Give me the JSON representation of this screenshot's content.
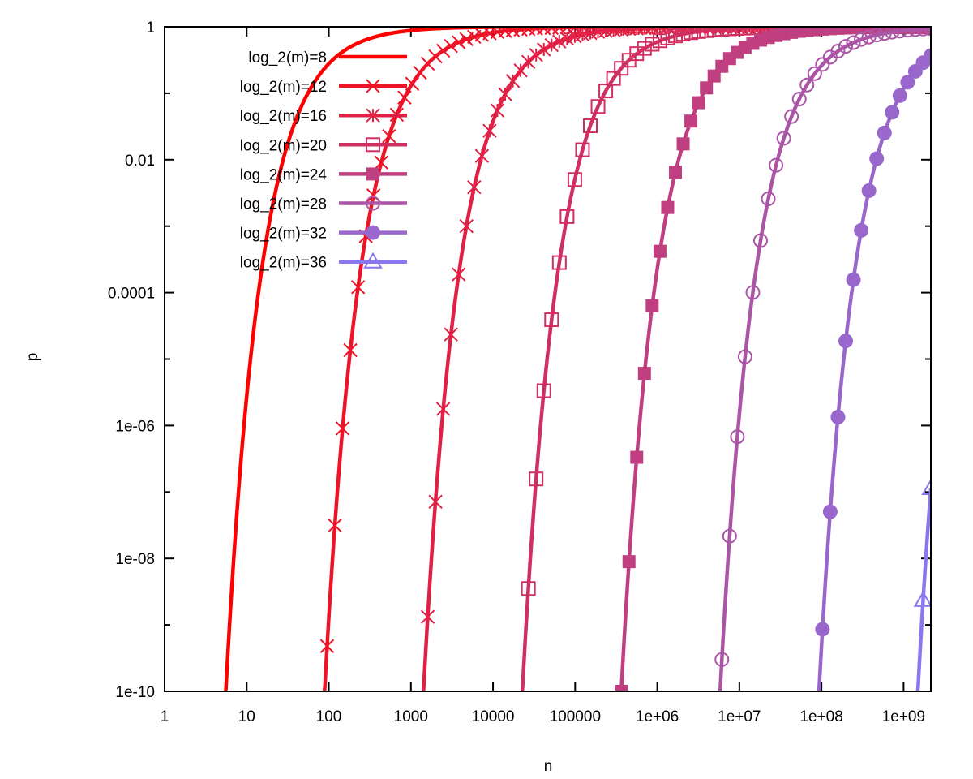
{
  "chart_data": {
    "type": "line",
    "title": "",
    "xlabel": "n",
    "ylabel": "p",
    "xscale": "log",
    "yscale": "log",
    "xlim": [
      1,
      2147483648
    ],
    "ylim": [
      1e-10,
      1
    ],
    "grid": false,
    "legend_placement": "top-left",
    "x_ticks": [
      {
        "value": 1,
        "label": "1"
      },
      {
        "value": 10,
        "label": "10"
      },
      {
        "value": 100,
        "label": "100"
      },
      {
        "value": 1000,
        "label": "1000"
      },
      {
        "value": 10000,
        "label": "10000"
      },
      {
        "value": 100000,
        "label": "100000"
      },
      {
        "value": 1000000,
        "label": "1e+06"
      },
      {
        "value": 10000000,
        "label": "1e+07"
      },
      {
        "value": 100000000,
        "label": "1e+08"
      },
      {
        "value": 1000000000,
        "label": "1e+09"
      }
    ],
    "y_ticks": [
      {
        "value": 1,
        "label": "1"
      },
      {
        "value": 0.1,
        "label": ""
      },
      {
        "value": 0.01,
        "label": "0.01"
      },
      {
        "value": 0.001,
        "label": ""
      },
      {
        "value": 0.0001,
        "label": "0.0001"
      },
      {
        "value": 1e-05,
        "label": ""
      },
      {
        "value": 1e-06,
        "label": "1e-06"
      },
      {
        "value": 1e-07,
        "label": ""
      },
      {
        "value": 1e-08,
        "label": "1e-08"
      },
      {
        "value": 1e-09,
        "label": ""
      },
      {
        "value": 1e-10,
        "label": "1e-10"
      }
    ],
    "series": [
      {
        "name": "log_2(m)=8",
        "color": "#ff0000",
        "marker": "none",
        "points": [
          [
            5.57,
            1.03e-10
          ],
          [
            12.8,
            4.54e-05
          ],
          [
            25.6,
            0.00674
          ],
          [
            64,
            0.135
          ],
          [
            128,
            0.368
          ],
          [
            640,
            0.819
          ],
          [
            6400,
            0.98
          ]
        ]
      },
      {
        "name": "log_2(m)=12",
        "color": "#ee1428",
        "marker": "cross",
        "points": [
          [
            89,
            1.03e-10
          ],
          [
            205,
            4.54e-05
          ],
          [
            410,
            0.00674
          ],
          [
            1024,
            0.135
          ],
          [
            2048,
            0.368
          ],
          [
            10240,
            0.819
          ],
          [
            102400,
            0.98
          ]
        ]
      },
      {
        "name": "log_2(m)=16",
        "color": "#e02045",
        "marker": "star",
        "points": [
          [
            1425,
            1.03e-10
          ],
          [
            3277,
            4.54e-05
          ],
          [
            6554,
            0.00674
          ],
          [
            16384,
            0.135
          ],
          [
            32768,
            0.368
          ],
          [
            163840,
            0.819
          ],
          [
            1638400,
            0.98
          ]
        ]
      },
      {
        "name": "log_2(m)=20",
        "color": "#d02f62",
        "marker": "open-square",
        "points": [
          [
            22795,
            1.03e-10
          ],
          [
            52429,
            4.54e-05
          ],
          [
            104858,
            0.00674
          ],
          [
            262144,
            0.135
          ],
          [
            524288,
            0.368
          ],
          [
            2621440,
            0.819
          ],
          [
            26214400,
            0.98
          ]
        ]
      },
      {
        "name": "log_2(m)=24",
        "color": "#c03f80",
        "marker": "filled-square",
        "points": [
          [
            364722,
            1.03e-10
          ],
          [
            838861,
            4.54e-05
          ],
          [
            1677722,
            0.00674
          ],
          [
            4194304,
            0.135
          ],
          [
            8388608,
            0.368
          ],
          [
            41943040,
            0.819
          ],
          [
            419430400,
            0.98
          ]
        ]
      },
      {
        "name": "log_2(m)=28",
        "color": "#aa55a6",
        "marker": "open-circle",
        "points": [
          [
            5835553,
            1.03e-10
          ],
          [
            13421773,
            4.54e-05
          ],
          [
            26843546,
            0.00674
          ],
          [
            67108864,
            0.135
          ],
          [
            134217728,
            0.368
          ],
          [
            671088640,
            0.819
          ]
        ]
      },
      {
        "name": "log_2(m)=32",
        "color": "#9966cc",
        "marker": "filled-circle",
        "points": [
          [
            93368854,
            1.03e-10
          ],
          [
            214748365,
            4.54e-05
          ],
          [
            429496730,
            0.00674
          ],
          [
            1073741824,
            0.135
          ],
          [
            2147483648,
            0.368
          ]
        ]
      },
      {
        "name": "log_2(m)=36",
        "color": "#8877ee",
        "marker": "open-triangle",
        "points": [
          [
            1494000000,
            1.03e-10
          ],
          [
            2147483648,
            1.13e-07
          ]
        ]
      }
    ]
  }
}
